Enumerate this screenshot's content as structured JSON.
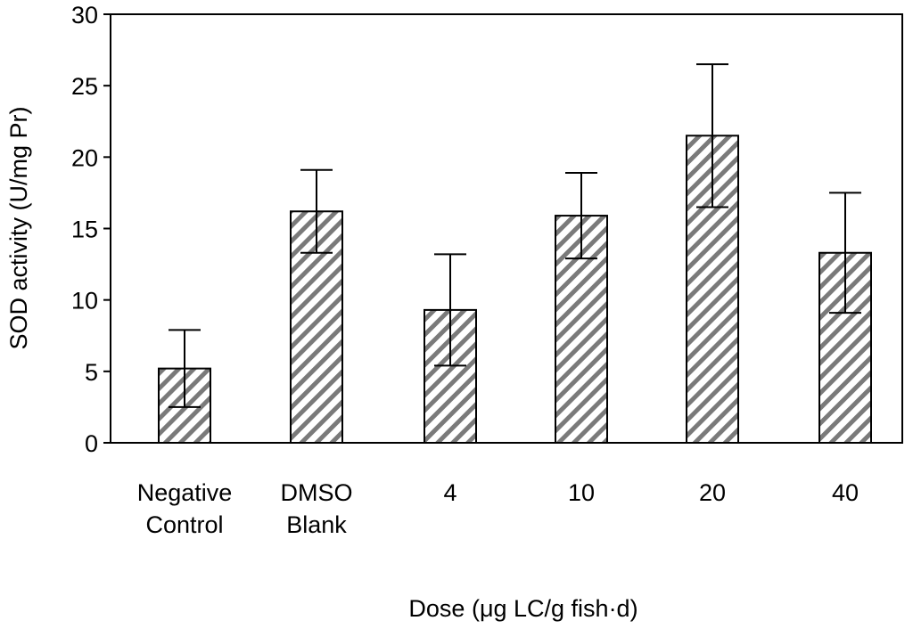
{
  "chart_data": {
    "type": "bar",
    "title": "",
    "xlabel": "Dose (μg LC/g fish·d)",
    "ylabel": "SOD activity (U/mg Pr)",
    "ylim": [
      0,
      30
    ],
    "yticks": [
      0,
      5,
      10,
      15,
      20,
      25,
      30
    ],
    "categories": [
      [
        "Negative",
        "Control"
      ],
      [
        "DMSO",
        "Blank"
      ],
      [
        "4"
      ],
      [
        "10"
      ],
      [
        "20"
      ],
      [
        "40"
      ]
    ],
    "values": [
      5.2,
      16.2,
      9.3,
      15.9,
      21.5,
      13.3
    ],
    "errors": [
      2.7,
      2.9,
      3.9,
      3.0,
      5.0,
      4.2
    ],
    "grid": false,
    "legend": "none",
    "bar_pattern": "diagonal-hatch",
    "colors": {
      "hatch": "#7a7a7a",
      "edge": "#000000",
      "background": "#ffffff"
    }
  }
}
